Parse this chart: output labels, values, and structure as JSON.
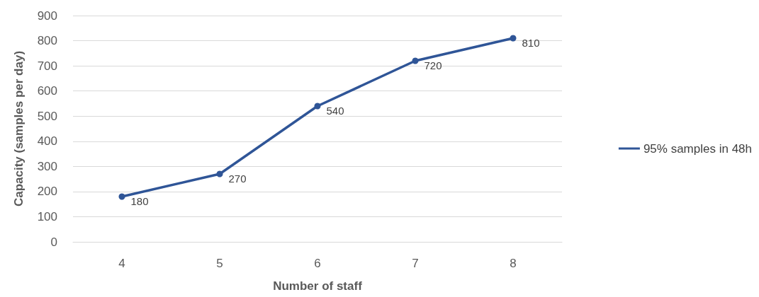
{
  "chart_data": {
    "type": "line",
    "xlabel": "Number of staff",
    "ylabel": "Capacity (samples per day)",
    "categories": [
      "4",
      "5",
      "6",
      "7",
      "8"
    ],
    "series": [
      {
        "name": "95% samples in 48h",
        "color": "#2f5597",
        "values": [
          180,
          270,
          540,
          720,
          810
        ]
      }
    ],
    "ylim": [
      0,
      900
    ],
    "yticks": [
      0,
      100,
      200,
      300,
      400,
      500,
      600,
      700,
      800,
      900
    ],
    "grid": "y",
    "legend": "right",
    "marker": "circle",
    "line_style": "solid",
    "data_labels": true
  }
}
